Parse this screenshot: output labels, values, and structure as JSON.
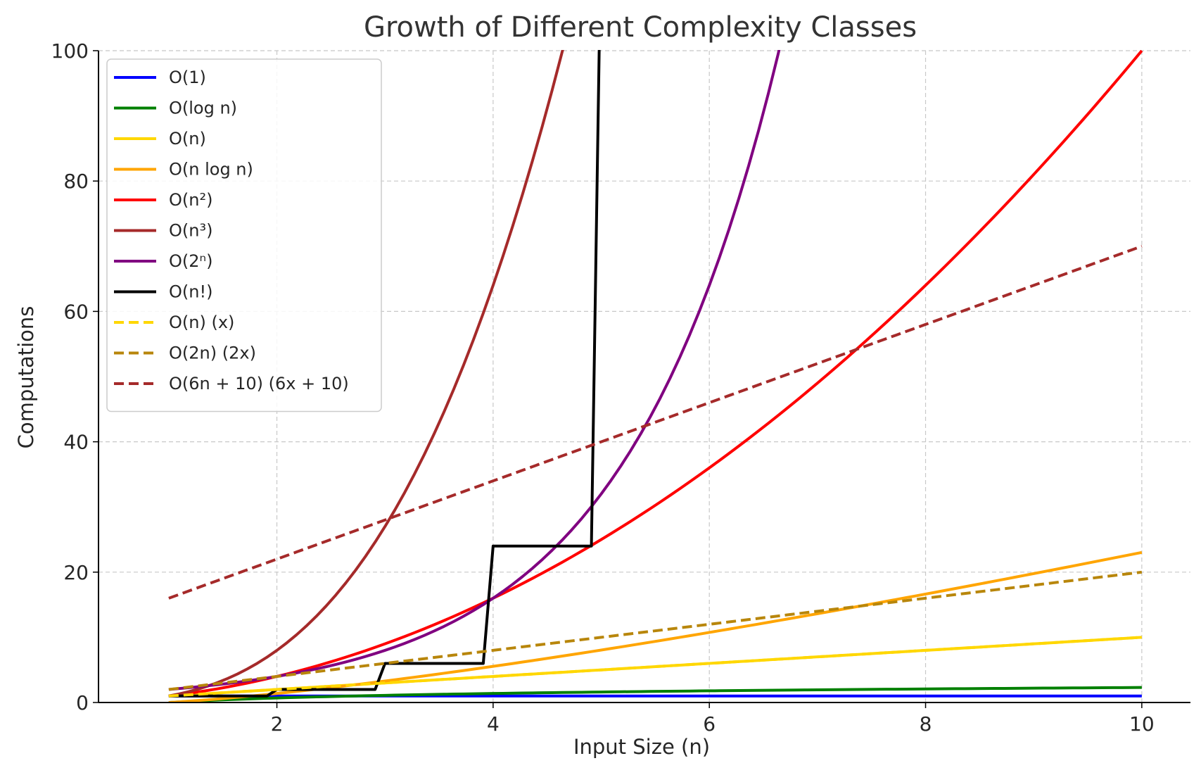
{
  "chart_data": {
    "type": "line",
    "title": "Growth of Different Complexity Classes",
    "xlabel": "Input Size (n)",
    "ylabel": "Computations",
    "xlim": [
      0.35,
      10.45
    ],
    "ylim": [
      0,
      100
    ],
    "x_ticks": [
      2,
      4,
      6,
      8,
      10
    ],
    "y_ticks": [
      0,
      20,
      40,
      60,
      80,
      100
    ],
    "grid": true,
    "legend_position": "top-left",
    "x_range": [
      1,
      10
    ],
    "series": [
      {
        "name": "O(1)",
        "formula": "1",
        "color": "#0000ff",
        "dash": "solid"
      },
      {
        "name": "O(log n)",
        "formula": "ln(x)",
        "color": "#008000",
        "dash": "solid"
      },
      {
        "name": "O(n)",
        "formula": "x",
        "color": "#ffd700",
        "dash": "solid"
      },
      {
        "name": "O(n log n)",
        "formula": "x*ln(x)",
        "color": "#ffa500",
        "dash": "solid"
      },
      {
        "name": "O(n²)",
        "formula": "x^2",
        "color": "#ff0000",
        "dash": "solid"
      },
      {
        "name": "O(n³)",
        "formula": "x^3",
        "color": "#a52a2a",
        "dash": "solid"
      },
      {
        "name": "O(2ⁿ)",
        "formula": "2^x",
        "color": "#800080",
        "dash": "solid"
      },
      {
        "name": "O(n!)",
        "formula": "floor(x)! (step)",
        "color": "#000000",
        "dash": "solid"
      },
      {
        "name": "O(n) (x)",
        "formula": "x",
        "color": "#ffd700",
        "dash": "dashed"
      },
      {
        "name": "O(2n) (2x)",
        "formula": "2*x",
        "color": "#b8860b",
        "dash": "dashed"
      },
      {
        "name": "O(6n + 10) (6x + 10)",
        "formula": "6*x+10",
        "color": "#a52a2a",
        "dash": "dashed"
      }
    ]
  }
}
